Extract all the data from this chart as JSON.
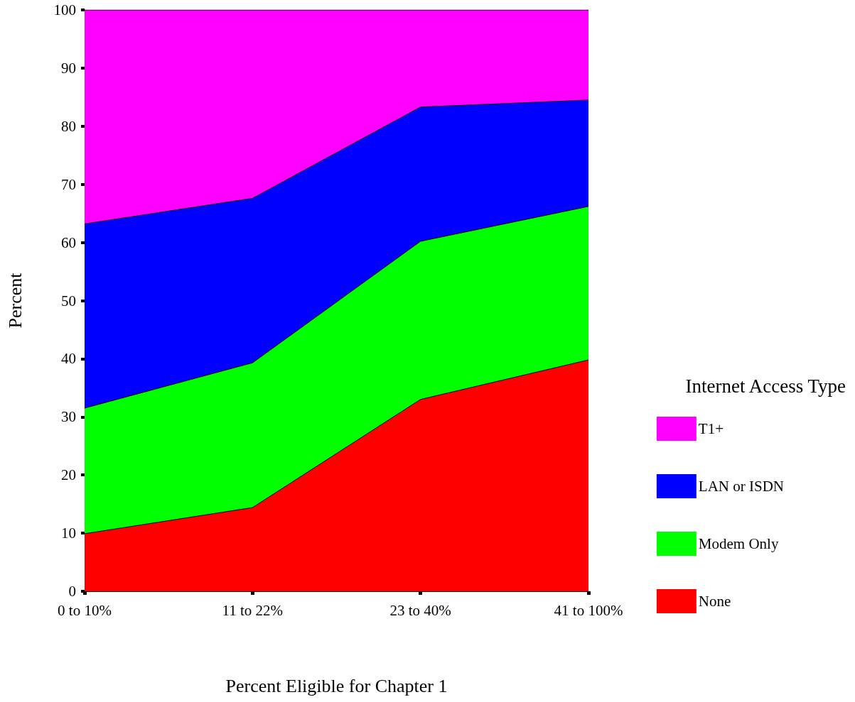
{
  "chart_data": {
    "type": "area",
    "stacked": true,
    "xlabel": "Percent Eligible for Chapter 1",
    "ylabel": "Percent",
    "legend_title": "Internet Access Type",
    "legend": "right",
    "grid": false,
    "marker": "none",
    "categories": [
      "0 to 10%",
      "11 to 22%",
      "23 to 40%",
      "41 to 100%"
    ],
    "ylim": [
      0,
      100
    ],
    "yticks": [
      0,
      10,
      20,
      30,
      40,
      50,
      60,
      70,
      80,
      90,
      100
    ],
    "series": [
      {
        "name": "None",
        "color": "#ff0000",
        "values": [
          9.9,
          14.4,
          33.0,
          39.8
        ]
      },
      {
        "name": "Modem Only",
        "color": "#00ff00",
        "values": [
          21.6,
          24.9,
          27.2,
          26.4
        ]
      },
      {
        "name": "LAN or ISDN",
        "color": "#0000ff",
        "values": [
          31.7,
          28.3,
          23.1,
          18.3
        ]
      },
      {
        "name": "T1+",
        "color": "#ff00ff",
        "values": [
          36.8,
          32.4,
          16.7,
          15.5
        ]
      }
    ]
  }
}
